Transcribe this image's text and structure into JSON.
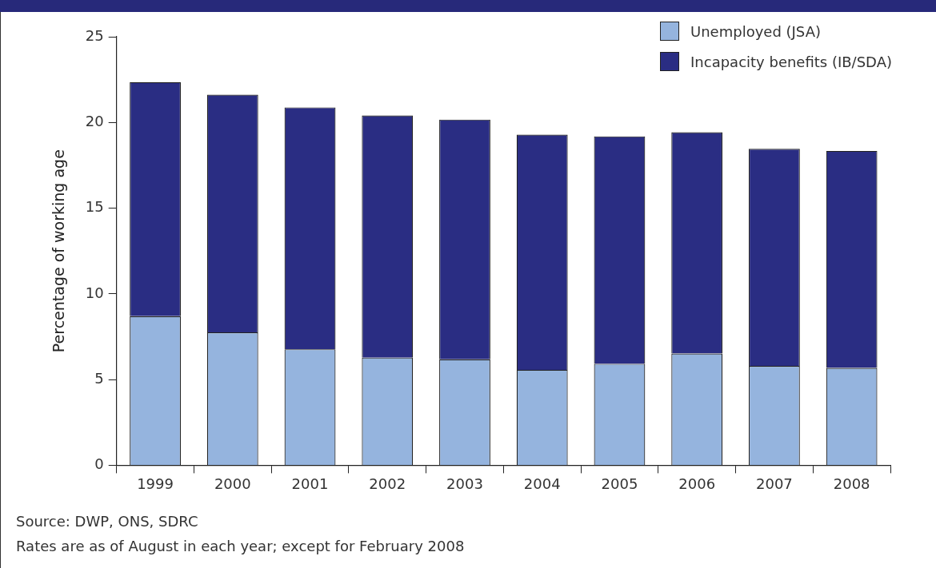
{
  "chart_data": {
    "type": "bar",
    "stacked": true,
    "ylabel": "Percentage of working age",
    "categories": [
      "1999",
      "2000",
      "2001",
      "2002",
      "2003",
      "2004",
      "2005",
      "2006",
      "2007",
      "2008"
    ],
    "series": [
      {
        "name": "Unemployed (JSA)",
        "color": "#95b4de",
        "values": [
          8.7,
          7.75,
          6.77,
          6.28,
          6.18,
          5.57,
          5.92,
          6.52,
          5.8,
          5.68
        ]
      },
      {
        "name": "Incapacity benefits (IB/SDA)",
        "color": "#2a2d83",
        "values": [
          13.65,
          13.87,
          14.11,
          14.13,
          13.99,
          13.72,
          13.27,
          12.91,
          12.66,
          12.66
        ]
      }
    ],
    "ylim": [
      0,
      25
    ],
    "yticks": [
      0,
      5,
      10,
      15,
      20,
      25
    ],
    "grid": false,
    "legend": "top right",
    "annotations": [
      "Source: DWP, ONS, SDRC",
      "Rates are as of August in each year; except for February 2008"
    ]
  }
}
